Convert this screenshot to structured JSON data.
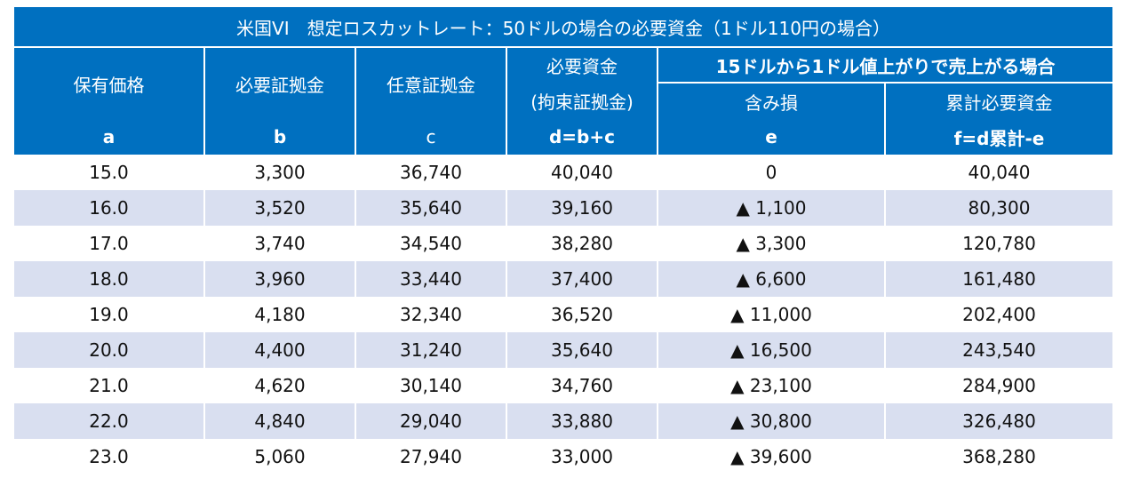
{
  "title": "米国VI　想定ロスカットレート：50ドルの場合の必要資金（1ドル110円の場合）",
  "headers": {
    "holding_price": "保有価格",
    "required_margin": "必要証拠金",
    "optional_margin": "任意証拠金",
    "required_funds_line1": "必要資金",
    "required_funds_line2": "(拘束証拠金)",
    "scenario": "15ドルから1ドル値上がりで売上がる場合",
    "unrealized_loss": "含み損",
    "cumulative_funds": "累計必要資金"
  },
  "formulas": {
    "a": "a",
    "b": "b",
    "c": "c",
    "d": "d=b+c",
    "e": "e",
    "f": "f=d累計-e"
  },
  "rows": [
    {
      "a": "15.0",
      "b": "3,300",
      "c": "36,740",
      "d": "40,040",
      "e": "0",
      "f": "40,040"
    },
    {
      "a": "16.0",
      "b": "3,520",
      "c": "35,640",
      "d": "39,160",
      "e": "▲ 1,100",
      "f": "80,300"
    },
    {
      "a": "17.0",
      "b": "3,740",
      "c": "34,540",
      "d": "38,280",
      "e": "▲ 3,300",
      "f": "120,780"
    },
    {
      "a": "18.0",
      "b": "3,960",
      "c": "33,440",
      "d": "37,400",
      "e": "▲ 6,600",
      "f": "161,480"
    },
    {
      "a": "19.0",
      "b": "4,180",
      "c": "32,340",
      "d": "36,520",
      "e": "▲ 11,000",
      "f": "202,400"
    },
    {
      "a": "20.0",
      "b": "4,400",
      "c": "31,240",
      "d": "35,640",
      "e": "▲ 16,500",
      "f": "243,540"
    },
    {
      "a": "21.0",
      "b": "4,620",
      "c": "30,140",
      "d": "34,760",
      "e": "▲ 23,100",
      "f": "284,900"
    },
    {
      "a": "22.0",
      "b": "4,840",
      "c": "29,040",
      "d": "33,880",
      "e": "▲ 30,800",
      "f": "326,480"
    },
    {
      "a": "23.0",
      "b": "5,060",
      "c": "27,940",
      "d": "33,000",
      "e": "▲ 39,600",
      "f": "368,280"
    }
  ],
  "colors": {
    "header_bg": "#0070c0",
    "header_text": "#ffffff",
    "stripe_bg": "#d9dff0"
  }
}
